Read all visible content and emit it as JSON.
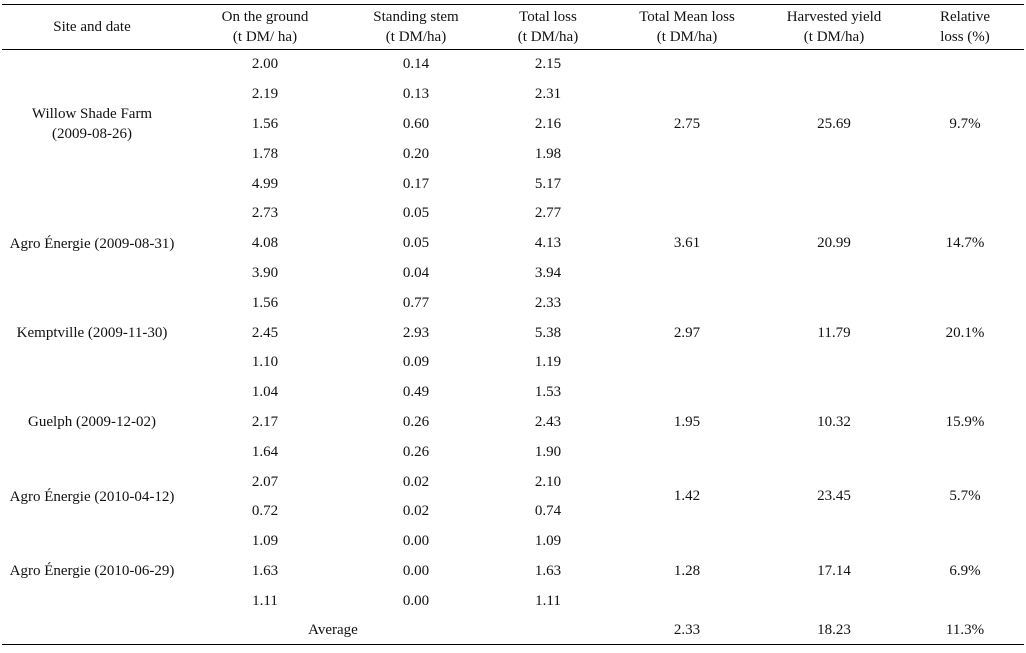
{
  "table": {
    "headers": [
      {
        "line1": "Site and date",
        "line2": ""
      },
      {
        "line1": "On the ground",
        "line2": "(t DM/ ha)"
      },
      {
        "line1": "Standing stem",
        "line2": "(t DM/ha)"
      },
      {
        "line1": "Total loss",
        "line2": "(t DM/ha)"
      },
      {
        "line1": "Total Mean loss",
        "line2": "(t DM/ha)"
      },
      {
        "line1": "Harvested yield",
        "line2": "(t DM/ha)"
      },
      {
        "line1": "Relative",
        "line2": "loss (%)"
      }
    ],
    "groups": [
      {
        "site_line1": "Willow Shade Farm",
        "site_line2": "(2009-08-26)",
        "rows": [
          [
            "2.00",
            "0.14",
            "2.15"
          ],
          [
            "2.19",
            "0.13",
            "2.31"
          ],
          [
            "1.56",
            "0.60",
            "2.16"
          ],
          [
            "1.78",
            "0.20",
            "1.98"
          ],
          [
            "4.99",
            "0.17",
            "5.17"
          ]
        ],
        "mean_loss": "2.75",
        "harvested_yield": "25.69",
        "relative_loss": "9.7%"
      },
      {
        "site_line1": "Agro Énergie (2009-08-31)",
        "site_line2": "",
        "rows": [
          [
            "2.73",
            "0.05",
            "2.77"
          ],
          [
            "4.08",
            "0.05",
            "4.13"
          ],
          [
            "3.90",
            "0.04",
            "3.94"
          ]
        ],
        "mean_loss": "3.61",
        "harvested_yield": "20.99",
        "relative_loss": "14.7%"
      },
      {
        "site_line1": "Kemptville (2009-11-30)",
        "site_line2": "",
        "rows": [
          [
            "1.56",
            "0.77",
            "2.33"
          ],
          [
            "2.45",
            "2.93",
            "5.38"
          ],
          [
            "1.10",
            "0.09",
            "1.19"
          ]
        ],
        "mean_loss": "2.97",
        "harvested_yield": "11.79",
        "relative_loss": "20.1%"
      },
      {
        "site_line1": "Guelph (2009-12-02)",
        "site_line2": "",
        "rows": [
          [
            "1.04",
            "0.49",
            "1.53"
          ],
          [
            "2.17",
            "0.26",
            "2.43"
          ],
          [
            "1.64",
            "0.26",
            "1.90"
          ]
        ],
        "mean_loss": "1.95",
        "harvested_yield": "10.32",
        "relative_loss": "15.9%"
      },
      {
        "site_line1": "Agro Énergie (2010-04-12)",
        "site_line2": "",
        "rows": [
          [
            "2.07",
            "0.02",
            "2.10"
          ],
          [
            "0.72",
            "0.02",
            "0.74"
          ]
        ],
        "mean_loss": "1.42",
        "harvested_yield": "23.45",
        "relative_loss": "5.7%"
      },
      {
        "site_line1": "Agro Énergie (2010-06-29)",
        "site_line2": "",
        "rows": [
          [
            "1.09",
            "0.00",
            "1.09"
          ],
          [
            "1.63",
            "0.00",
            "1.63"
          ],
          [
            "1.11",
            "0.00",
            "1.11"
          ]
        ],
        "mean_loss": "1.28",
        "harvested_yield": "17.14",
        "relative_loss": "6.9%"
      }
    ],
    "average": {
      "label": "Average",
      "mean_loss": "2.33",
      "harvested_yield": "18.23",
      "relative_loss": "11.3%"
    }
  }
}
